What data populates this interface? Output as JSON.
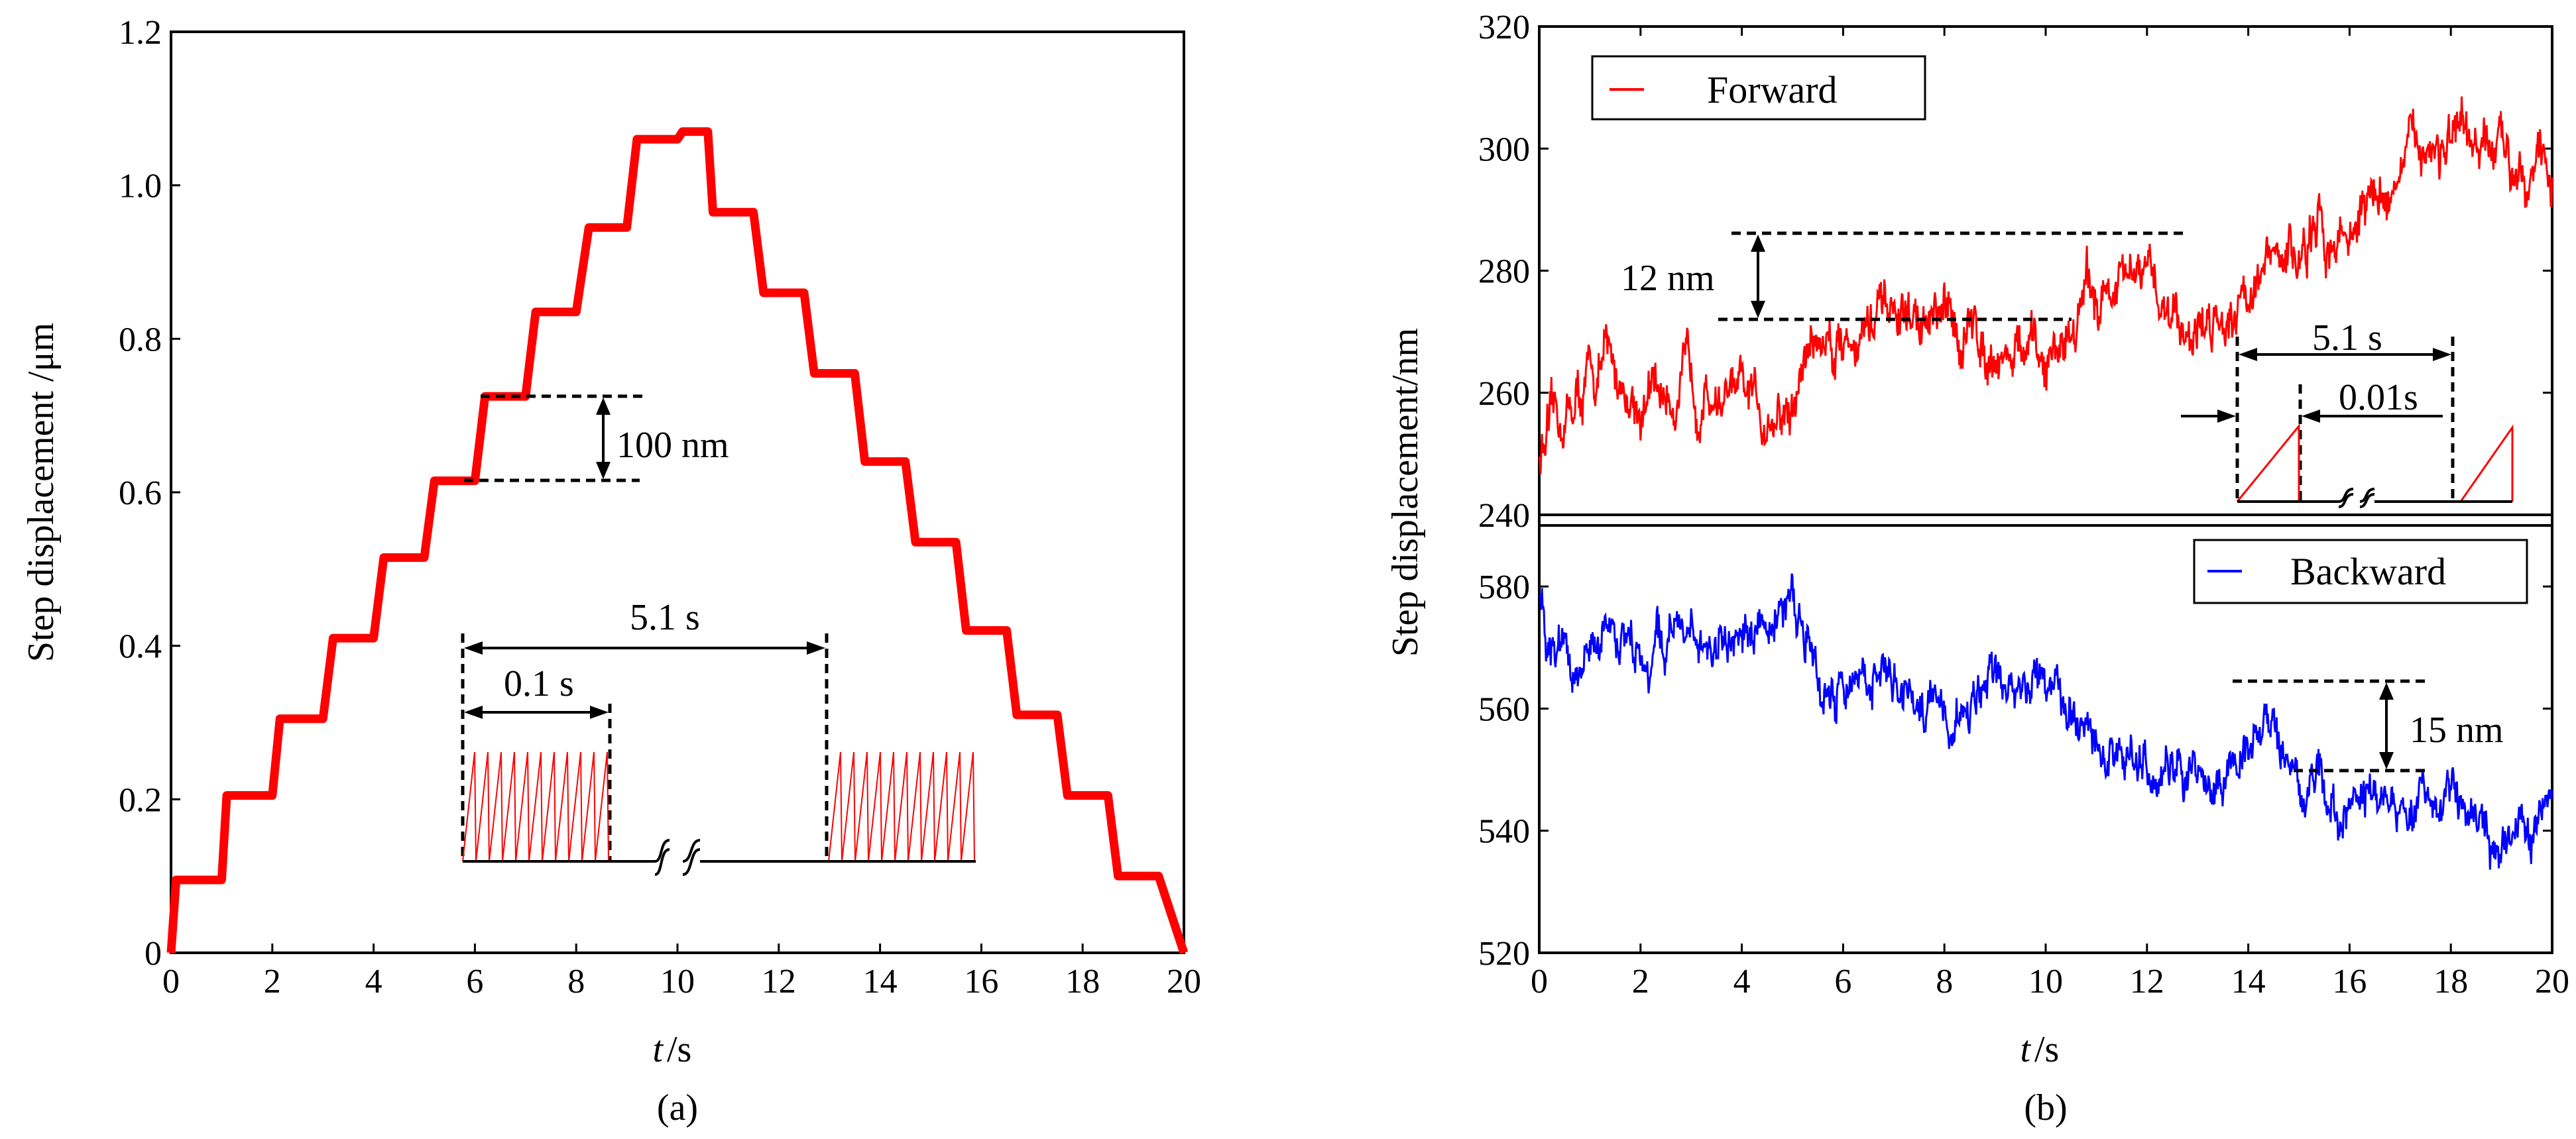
{
  "chart_data": [
    {
      "id": "a",
      "type": "line",
      "caption": "(a)",
      "xlabel_italic": "t",
      "xlabel_unit": " /s",
      "ylabel": "Step displacement /μm",
      "xlim": [
        0,
        20
      ],
      "ylim": [
        0,
        1.2
      ],
      "x_ticks": [
        "0",
        "2",
        "4",
        "6",
        "8",
        "10",
        "12",
        "14",
        "16",
        "18",
        "20"
      ],
      "y_ticks": [
        "0",
        "0.2",
        "0.4",
        "0.6",
        "0.8",
        "1.0",
        "1.2"
      ],
      "series": [
        {
          "name": "step displacement",
          "color": "#ff0000",
          "steps": [
            {
              "t0": 0.1,
              "t1": 1.0,
              "y": 0.095
            },
            {
              "t0": 1.1,
              "t1": 2.0,
              "y": 0.205
            },
            {
              "t0": 2.15,
              "t1": 3.0,
              "y": 0.305
            },
            {
              "t0": 3.2,
              "t1": 4.0,
              "y": 0.41
            },
            {
              "t0": 4.2,
              "t1": 5.0,
              "y": 0.515
            },
            {
              "t0": 5.2,
              "t1": 6.0,
              "y": 0.615
            },
            {
              "t0": 6.2,
              "t1": 7.0,
              "y": 0.725
            },
            {
              "t0": 7.2,
              "t1": 8.0,
              "y": 0.835
            },
            {
              "t0": 8.25,
              "t1": 9.0,
              "y": 0.945
            },
            {
              "t0": 9.2,
              "t1": 10.0,
              "y": 1.06
            },
            {
              "t0": 10.1,
              "t1": 10.6,
              "y": 1.07
            },
            {
              "t0": 10.7,
              "t1": 11.5,
              "y": 0.965
            },
            {
              "t0": 11.7,
              "t1": 12.5,
              "y": 0.86
            },
            {
              "t0": 12.7,
              "t1": 13.5,
              "y": 0.755
            },
            {
              "t0": 13.7,
              "t1": 14.5,
              "y": 0.64
            },
            {
              "t0": 14.7,
              "t1": 15.5,
              "y": 0.535
            },
            {
              "t0": 15.7,
              "t1": 16.5,
              "y": 0.42
            },
            {
              "t0": 16.7,
              "t1": 17.5,
              "y": 0.31
            },
            {
              "t0": 17.7,
              "t1": 18.5,
              "y": 0.205
            },
            {
              "t0": 18.7,
              "t1": 19.5,
              "y": 0.1
            }
          ],
          "end": [
            20,
            0
          ]
        }
      ],
      "annotations": {
        "step_height": "100 nm",
        "period": "5.1 s",
        "sub_period": "0.1 s"
      }
    },
    {
      "id": "b",
      "type": "line",
      "caption": "(b)",
      "xlabel_italic": "t",
      "xlabel_unit": " /s",
      "ylabel": "Step displacement/nm",
      "xlim": [
        0,
        20
      ],
      "x_ticks": [
        "0",
        "2",
        "4",
        "6",
        "8",
        "10",
        "12",
        "14",
        "16",
        "18",
        "20"
      ],
      "panels": [
        {
          "name": "Forward",
          "color": "#ff0000",
          "ylim": [
            240,
            320
          ],
          "y_ticks": [
            "240",
            "260",
            "280",
            "300",
            "320"
          ],
          "trend": [
            [
              0,
              250
            ],
            [
              1.3,
              265
            ],
            [
              2,
              258
            ],
            [
              3,
              262
            ],
            [
              4,
              258
            ],
            [
              5,
              256
            ],
            [
              5.3,
              268
            ],
            [
              7,
              272
            ],
            [
              8.5,
              270
            ],
            [
              10,
              264
            ],
            [
              10.8,
              276
            ],
            [
              12,
              278
            ],
            [
              13,
              270
            ],
            [
              14,
              278
            ],
            [
              15,
              283
            ],
            [
              16,
              287
            ],
            [
              17,
              296
            ],
            [
              17.5,
              302
            ],
            [
              18.5,
              298
            ],
            [
              19.5,
              300
            ],
            [
              20,
              295
            ]
          ],
          "noise_amplitude": 5,
          "annotations": {
            "band": "12 nm",
            "period": "5.1 s",
            "ramp": "0.01s"
          }
        },
        {
          "name": "Backward",
          "color": "#0000ff",
          "ylim": [
            520,
            590
          ],
          "y_ticks": [
            "520",
            "540",
            "560",
            "580"
          ],
          "trend": [
            [
              0,
              578
            ],
            [
              0.5,
              566
            ],
            [
              1.5,
              572
            ],
            [
              3,
              571
            ],
            [
              4,
              572
            ],
            [
              4.8,
              578
            ],
            [
              5.2,
              576
            ],
            [
              5.6,
              563
            ],
            [
              7,
              566
            ],
            [
              8,
              558
            ],
            [
              9,
              562
            ],
            [
              10,
              564
            ],
            [
              10.5,
              560
            ],
            [
              11,
              553
            ],
            [
              12.5,
              550
            ],
            [
              13.5,
              549
            ],
            [
              14.5,
              558
            ],
            [
              15,
              548
            ],
            [
              15.5,
              547
            ],
            [
              17,
              545
            ],
            [
              18,
              547
            ],
            [
              19,
              535
            ],
            [
              19.5,
              538
            ],
            [
              20,
              544
            ]
          ],
          "noise_amplitude": 4.5,
          "annotations": {
            "band": "15 nm"
          }
        }
      ]
    }
  ]
}
